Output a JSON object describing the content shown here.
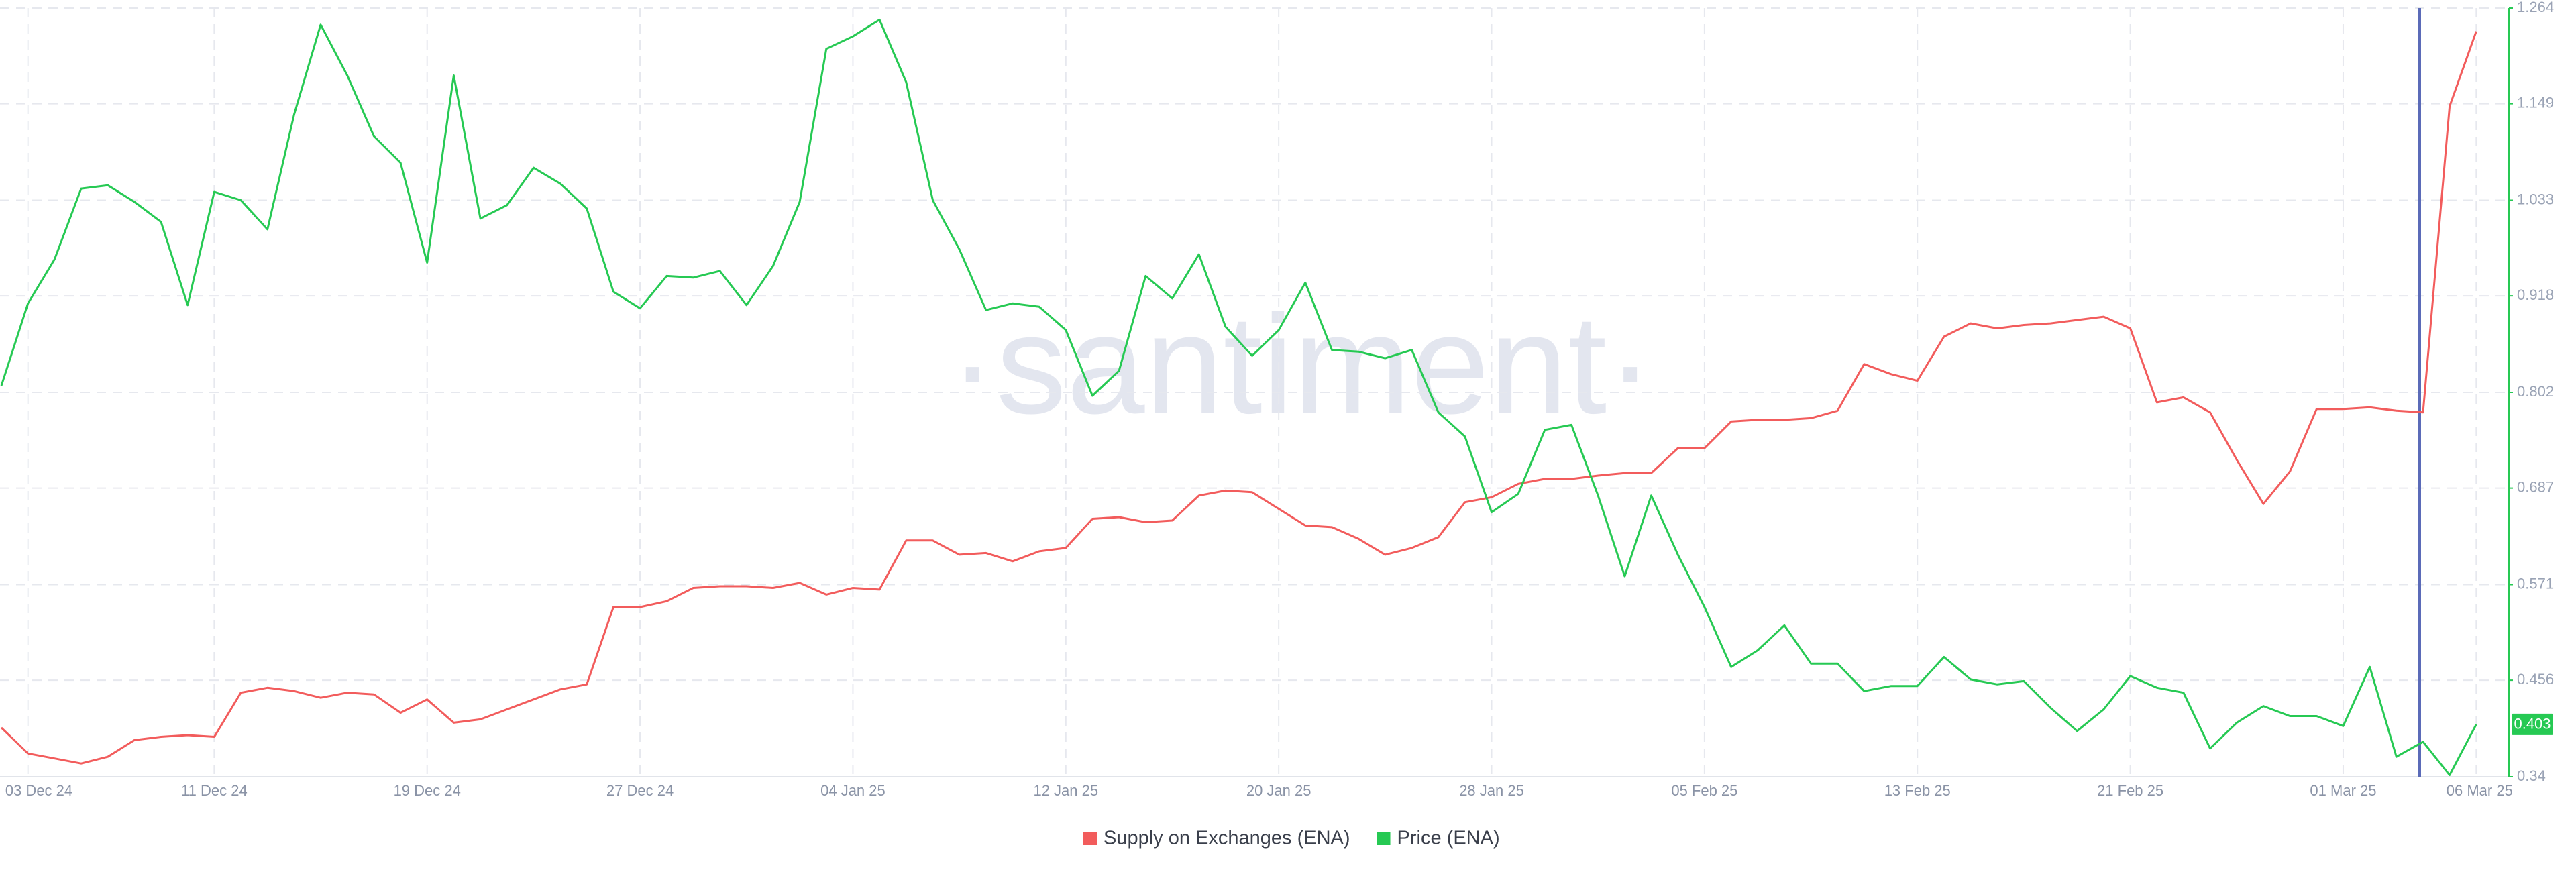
{
  "chart_data": {
    "type": "line",
    "watermark": "·santiment·",
    "y_axis_side": "right",
    "ylim": [
      0.34,
      1.264
    ],
    "yticks": [
      0.34,
      0.456,
      0.571,
      0.687,
      0.802,
      0.918,
      1.033,
      1.149,
      1.264
    ],
    "grid": true,
    "legend": "bottom",
    "current_price": 0.403,
    "categories": [
      null,
      "03 Dec 24",
      null,
      null,
      null,
      null,
      null,
      null,
      "11 Dec 24",
      null,
      null,
      null,
      null,
      null,
      null,
      null,
      "19 Dec 24",
      null,
      null,
      null,
      null,
      null,
      null,
      null,
      "27 Dec 24",
      null,
      null,
      null,
      null,
      null,
      null,
      null,
      "04 Jan 25",
      null,
      null,
      null,
      null,
      null,
      null,
      null,
      "12 Jan 25",
      null,
      null,
      null,
      null,
      null,
      null,
      null,
      "20 Jan 25",
      null,
      null,
      null,
      null,
      null,
      null,
      null,
      "28 Jan 25",
      null,
      null,
      null,
      null,
      null,
      null,
      null,
      "05 Feb 25",
      null,
      null,
      null,
      null,
      null,
      null,
      null,
      "13 Feb 25",
      null,
      null,
      null,
      null,
      null,
      null,
      null,
      "21 Feb 25",
      null,
      null,
      null,
      null,
      null,
      null,
      null,
      "01 Mar 25",
      null,
      null,
      null,
      null,
      "06 Mar 25"
    ],
    "series": [
      {
        "name": "Supply on Exchanges (ENA)",
        "color": "#f25c5c",
        "values": [
          0.399,
          0.368,
          0.362,
          0.356,
          0.364,
          0.384,
          0.388,
          0.39,
          0.388,
          0.441,
          0.447,
          0.443,
          0.435,
          0.441,
          0.439,
          0.417,
          0.433,
          0.405,
          0.409,
          0.421,
          0.433,
          0.445,
          0.451,
          0.544,
          0.544,
          0.551,
          0.567,
          0.569,
          0.569,
          0.567,
          0.573,
          0.559,
          0.567,
          0.565,
          0.624,
          0.624,
          0.607,
          0.609,
          0.599,
          0.611,
          0.615,
          0.65,
          0.652,
          0.646,
          0.648,
          0.678,
          0.684,
          0.682,
          0.662,
          0.642,
          0.64,
          0.626,
          0.607,
          0.615,
          0.628,
          0.67,
          0.676,
          0.692,
          0.698,
          0.698,
          0.702,
          0.705,
          0.705,
          0.735,
          0.735,
          0.767,
          0.769,
          0.769,
          0.771,
          0.78,
          0.836,
          0.824,
          0.816,
          0.869,
          0.885,
          0.879,
          0.883,
          0.885,
          0.889,
          0.893,
          0.879,
          0.79,
          0.796,
          0.778,
          0.721,
          0.668,
          0.707,
          0.782,
          0.782,
          0.784,
          0.78,
          0.778,
          1.146,
          1.236
        ]
      },
      {
        "name": "Price (ENA)",
        "color": "#26c953",
        "values": [
          0.81,
          0.909,
          0.962,
          1.047,
          1.051,
          1.031,
          1.007,
          0.907,
          1.043,
          1.033,
          0.998,
          1.136,
          1.244,
          1.183,
          1.11,
          1.078,
          0.958,
          1.183,
          1.011,
          1.027,
          1.072,
          1.053,
          1.023,
          0.923,
          0.903,
          0.942,
          0.94,
          0.948,
          0.907,
          0.954,
          1.031,
          1.215,
          1.23,
          1.25,
          1.175,
          1.033,
          0.974,
          0.901,
          0.909,
          0.905,
          0.877,
          0.798,
          0.828,
          0.942,
          0.915,
          0.968,
          0.881,
          0.846,
          0.877,
          0.934,
          0.853,
          0.851,
          0.843,
          0.853,
          0.778,
          0.749,
          0.658,
          0.68,
          0.757,
          0.763,
          0.678,
          0.581,
          0.678,
          0.607,
          0.544,
          0.472,
          0.492,
          0.522,
          0.476,
          0.476,
          0.443,
          0.449,
          0.449,
          0.484,
          0.457,
          0.451,
          0.455,
          0.423,
          0.395,
          0.421,
          0.461,
          0.447,
          0.441,
          0.374,
          0.405,
          0.425,
          0.413,
          0.413,
          0.401,
          0.472,
          0.364,
          0.382,
          0.342,
          0.403
        ]
      }
    ]
  }
}
